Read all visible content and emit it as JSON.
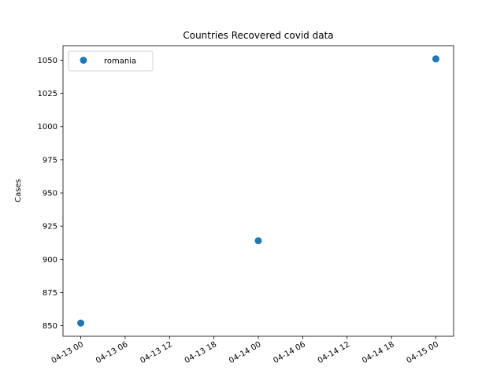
{
  "chart_data": {
    "type": "scatter",
    "title": "Countries Recovered covid data",
    "xlabel": "",
    "ylabel": "Cases",
    "x_ticks": [
      "04-13 00",
      "04-13 06",
      "04-13 12",
      "04-13 18",
      "04-14 00",
      "04-14 06",
      "04-14 12",
      "04-14 18",
      "04-15 00"
    ],
    "y_ticks": [
      850,
      875,
      900,
      925,
      950,
      975,
      1000,
      1025,
      1050
    ],
    "xlim": [
      "2020-04-12T21:36",
      "2020-04-15T02:24"
    ],
    "ylim": [
      842.05,
      1060.95
    ],
    "grid": false,
    "legend_position": "top-left",
    "series": [
      {
        "name": "romania",
        "color": "#1f77b4",
        "marker": "circle",
        "points": [
          {
            "x": "2020-04-13T00:00",
            "y": 852
          },
          {
            "x": "2020-04-14T00:00",
            "y": 914
          },
          {
            "x": "2020-04-15T00:00",
            "y": 1051
          }
        ]
      }
    ]
  }
}
